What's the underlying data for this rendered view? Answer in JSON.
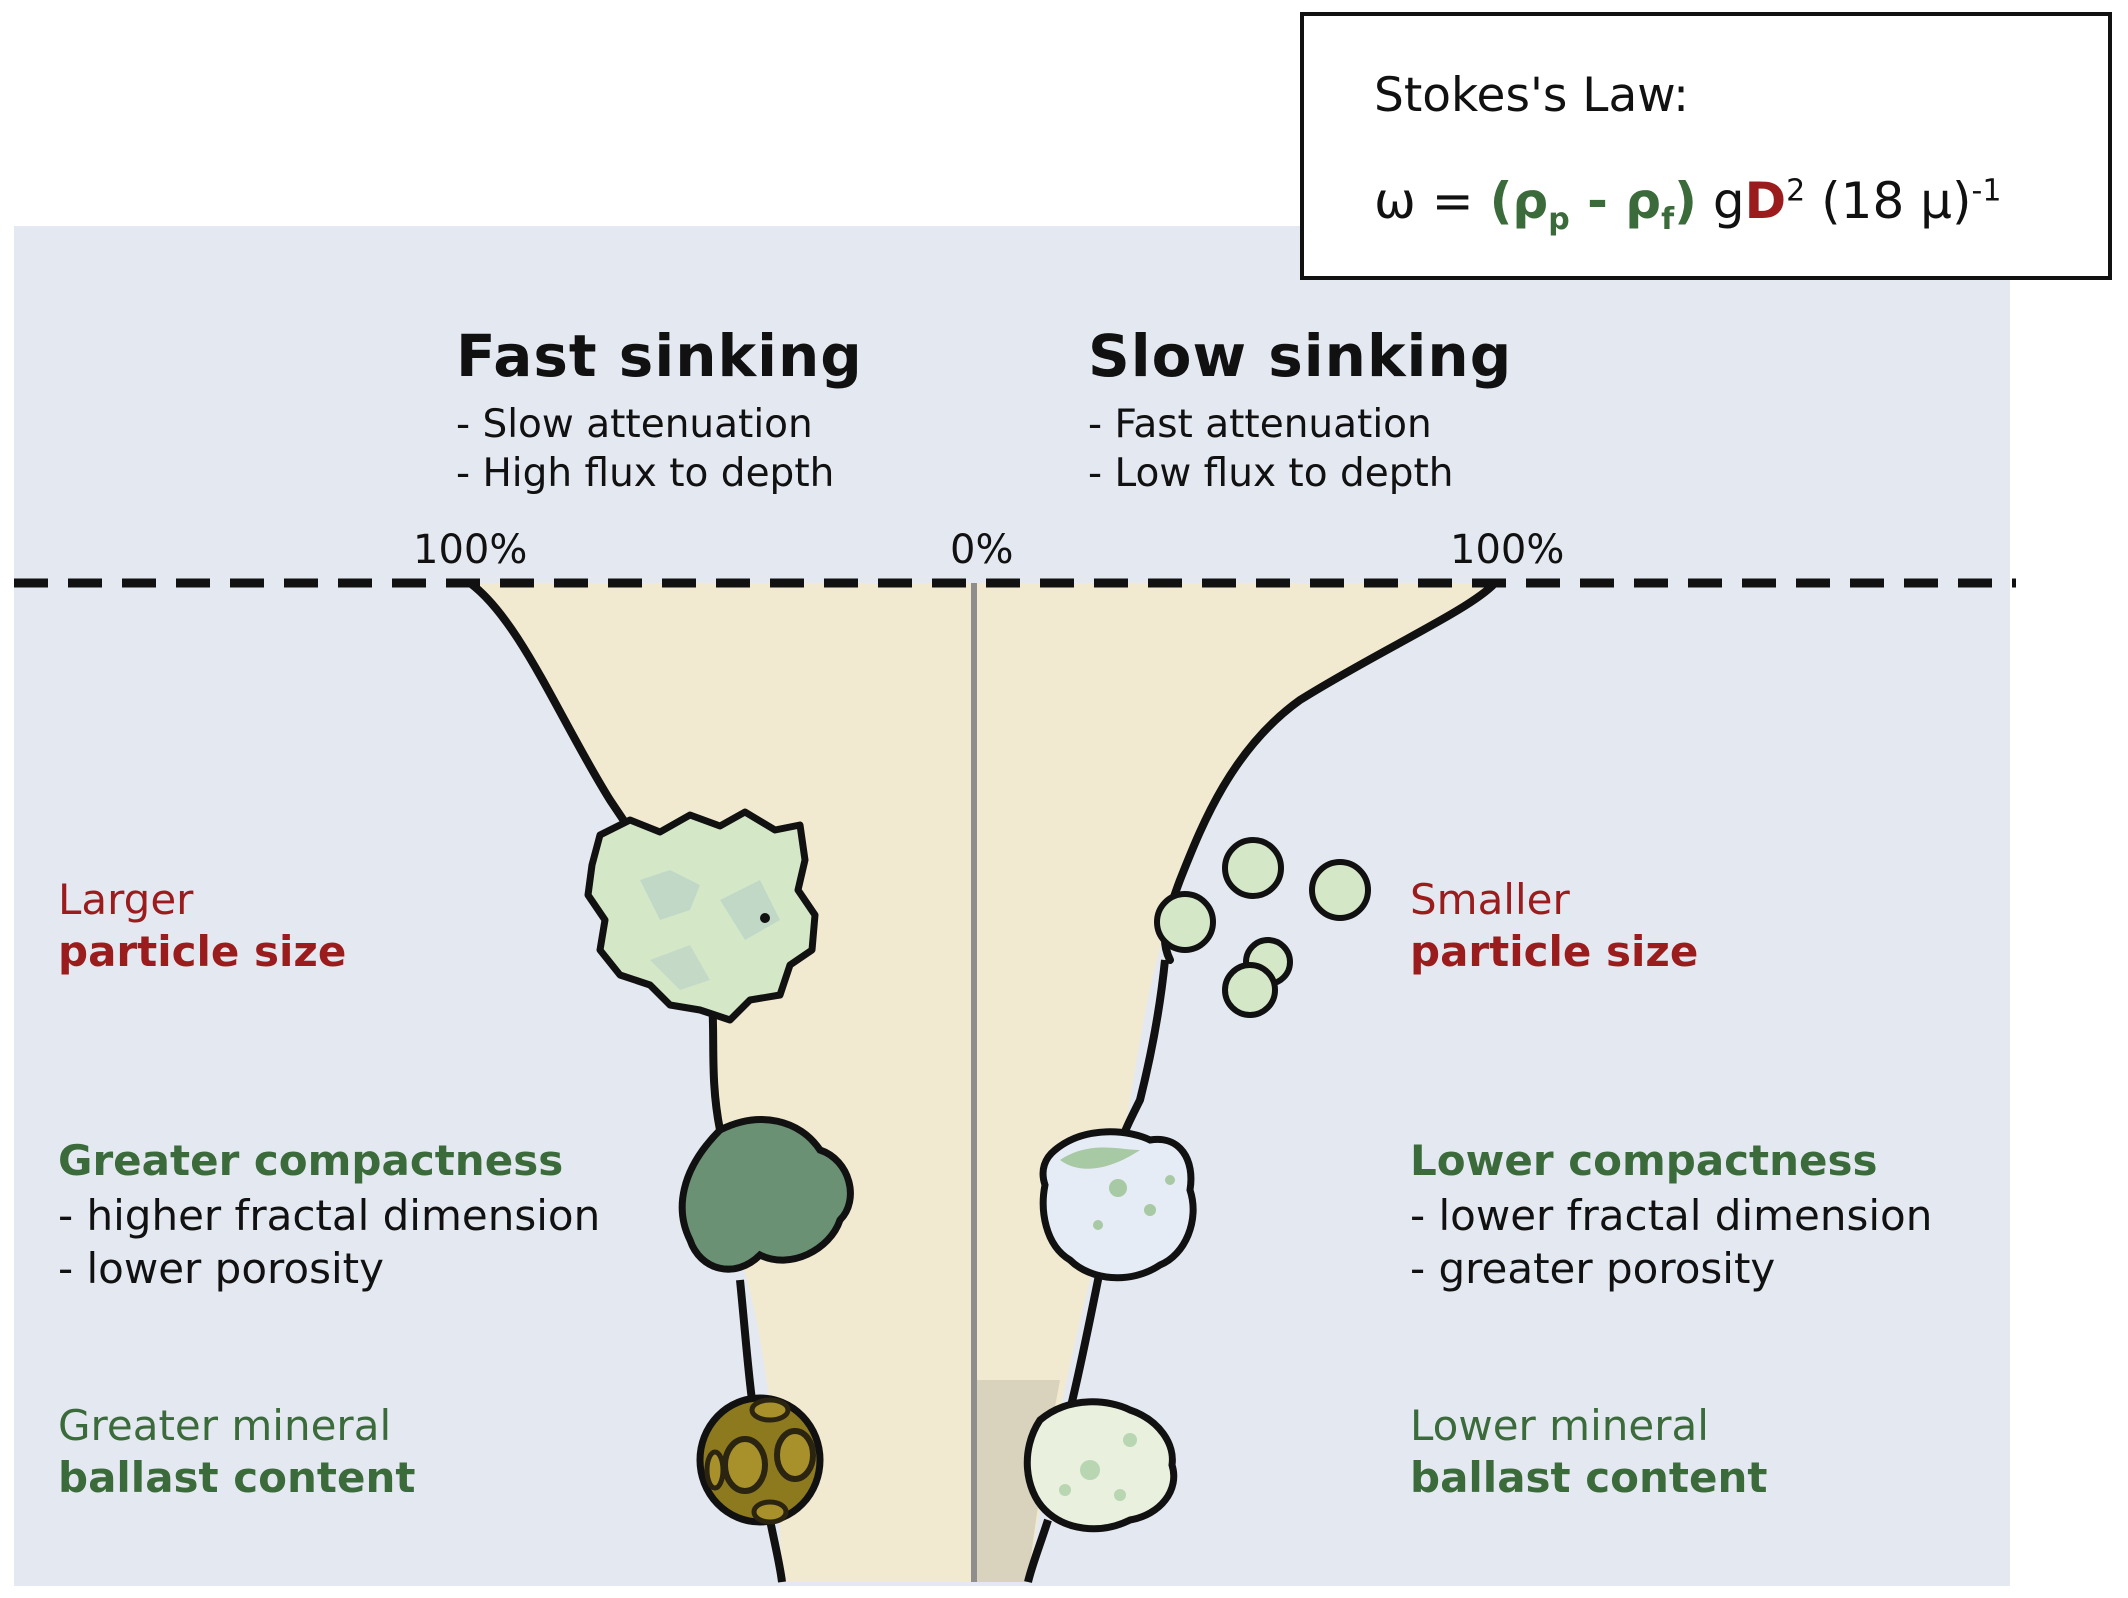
{
  "stokes": {
    "title": "Stokes's Law:",
    "omega": "ω =",
    "paren_open": "(ρ",
    "sub_p": "p",
    "minus": " - ρ",
    "sub_f": "f",
    "paren_close": ")",
    "g": " g",
    "D": "D",
    "sup2": "2",
    "rest": " (18 μ)",
    "sup_neg1": "-1",
    "colors": {
      "density_terms": "#3b6b3b",
      "diameter_term": "#9b1c1c"
    }
  },
  "fast": {
    "title": "Fast sinking",
    "lines": [
      "- Slow attenuation",
      "- High flux to depth"
    ]
  },
  "slow": {
    "title": "Slow sinking",
    "lines": [
      "- Fast attenuation",
      "- Low flux to depth"
    ]
  },
  "axis": {
    "left_pct": "100%",
    "center_pct": "0%",
    "right_pct": "100%"
  },
  "left_labels": {
    "size_line1": "Larger",
    "size_line2": "particle size",
    "compact_title": "Greater compactness",
    "compact_lines": [
      "- higher fractal dimension",
      "- lower porosity"
    ],
    "ballast_line1": "Greater mineral",
    "ballast_line2": "ballast content"
  },
  "right_labels": {
    "size_line1": "Smaller",
    "size_line2": "particle size",
    "compact_title": "Lower compactness",
    "compact_lines": [
      "- lower fractal dimension",
      "- greater porosity"
    ],
    "ballast_line1": "Lower mineral",
    "ballast_line2": "ballast content"
  },
  "colors": {
    "background_panel": "#e4e9f1",
    "flux_fill": "#f1ead0",
    "shadow_fill": "#d3cdb8",
    "particle_light": "#d4e8c8",
    "particle_dark": "#6a9173",
    "particle_porous": "#e6ecf5",
    "coccolith": "#8d7a1e",
    "red_text": "#9b1c1c",
    "green_text": "#3b6b3b"
  }
}
